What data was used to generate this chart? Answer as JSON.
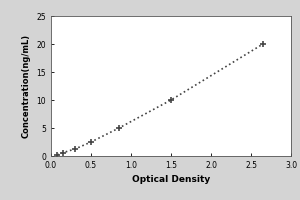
{
  "x_data": [
    0.08,
    0.15,
    0.3,
    0.5,
    0.85,
    1.5,
    2.65
  ],
  "y_data": [
    0.2,
    0.6,
    1.25,
    2.5,
    5.0,
    10.0,
    20.0
  ],
  "xlabel": "Optical Density",
  "ylabel": "Concentration(ng/mL)",
  "xlim": [
    0,
    3
  ],
  "ylim": [
    0,
    25
  ],
  "xticks": [
    0,
    0.5,
    1,
    1.5,
    2,
    2.5,
    3
  ],
  "yticks": [
    0,
    5,
    10,
    15,
    20,
    25
  ],
  "line_color": "#444444",
  "marker_color": "#444444",
  "marker": "+",
  "linestyle": "dotted",
  "linewidth": 1.2,
  "markersize": 5,
  "markeredgewidth": 1.2,
  "xlabel_fontsize": 6.5,
  "ylabel_fontsize": 6.0,
  "tick_fontsize": 5.5,
  "plot_bg": "#ffffff",
  "figure_bg": "#d4d4d4",
  "label_fontweight": "bold"
}
